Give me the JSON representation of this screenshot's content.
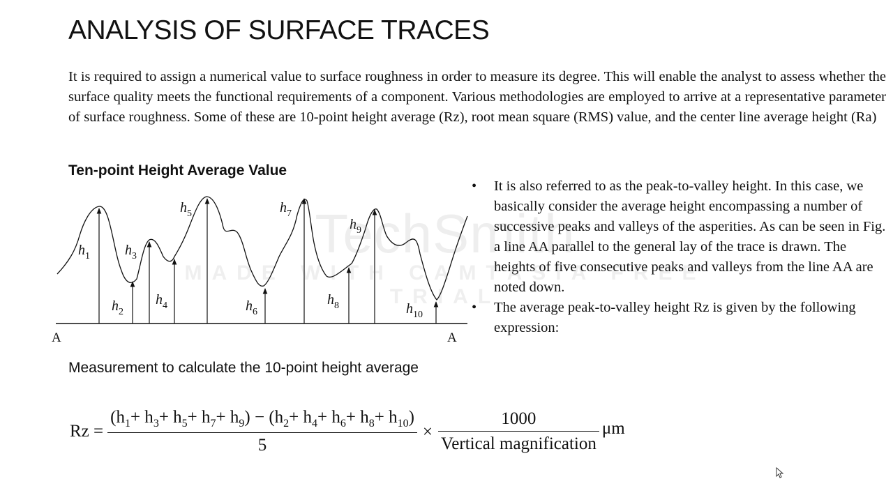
{
  "slide": {
    "title": "ANALYSIS OF SURFACE TRACES",
    "intro": "It is required to assign a numerical value to surface roughness in order to measure its degree. This will enable the analyst to assess whether the surface quality meets the functional requirements of a component. Various methodologies are employed to arrive at a representative parameter of surface roughness. Some of these are 10-point height average (Rz), root mean square (RMS) value, and the center line average height (Ra)",
    "subheading": "Ten-point Height Average Value",
    "caption": "Measurement to calculate the 10-point height average"
  },
  "figure": {
    "line_labels": [
      "A",
      "A"
    ],
    "heights": [
      {
        "main": "h",
        "sub": "1"
      },
      {
        "main": "h",
        "sub": "2"
      },
      {
        "main": "h",
        "sub": "3"
      },
      {
        "main": "h",
        "sub": "4"
      },
      {
        "main": "h",
        "sub": "5"
      },
      {
        "main": "h",
        "sub": "6"
      },
      {
        "main": "h",
        "sub": "7"
      },
      {
        "main": "h",
        "sub": "8"
      },
      {
        "main": "h",
        "sub": "9"
      },
      {
        "main": "h",
        "sub": "10"
      }
    ]
  },
  "bullets": {
    "marker": "•",
    "items": [
      "It is also referred to as the peak-to-valley height. In this case, we basically consider the average height encompassing a number of successive peaks and valleys of the asperities. As can be seen in Fig. a line AA parallel to the general lay of the trace is drawn. The heights of five consecutive peaks and valleys from the line AA are noted down.",
      "The average peak-to-valley height Rz is given by the following expression:"
    ]
  },
  "formula": {
    "lhs": "Rz =",
    "num1": [
      {
        "t": "(h"
      },
      {
        "s": "1"
      },
      {
        "t": "+ h"
      },
      {
        "s": "3"
      },
      {
        "t": "+ h"
      },
      {
        "s": "5"
      },
      {
        "t": "+ h"
      },
      {
        "s": "7"
      },
      {
        "t": "+ h"
      },
      {
        "s": "9"
      },
      {
        "t": ") − (h"
      },
      {
        "s": "2"
      },
      {
        "t": "+ h"
      },
      {
        "s": "4"
      },
      {
        "t": "+ h"
      },
      {
        "s": "6"
      },
      {
        "t": "+ h"
      },
      {
        "s": "8"
      },
      {
        "t": "+ h"
      },
      {
        "s": "10"
      },
      {
        "t": ")"
      }
    ],
    "den1": "5",
    "times": "×",
    "num2": "1000",
    "den2": "Vertical magnification",
    "unit": "μm"
  },
  "watermark": {
    "logo": "TechSmith",
    "line": "MADE WITH CAMTASIA FREE TRIAL"
  },
  "icons": {
    "cursor": "mouse-pointer-icon",
    "watermark_logo": "techsmith-logo-icon"
  }
}
